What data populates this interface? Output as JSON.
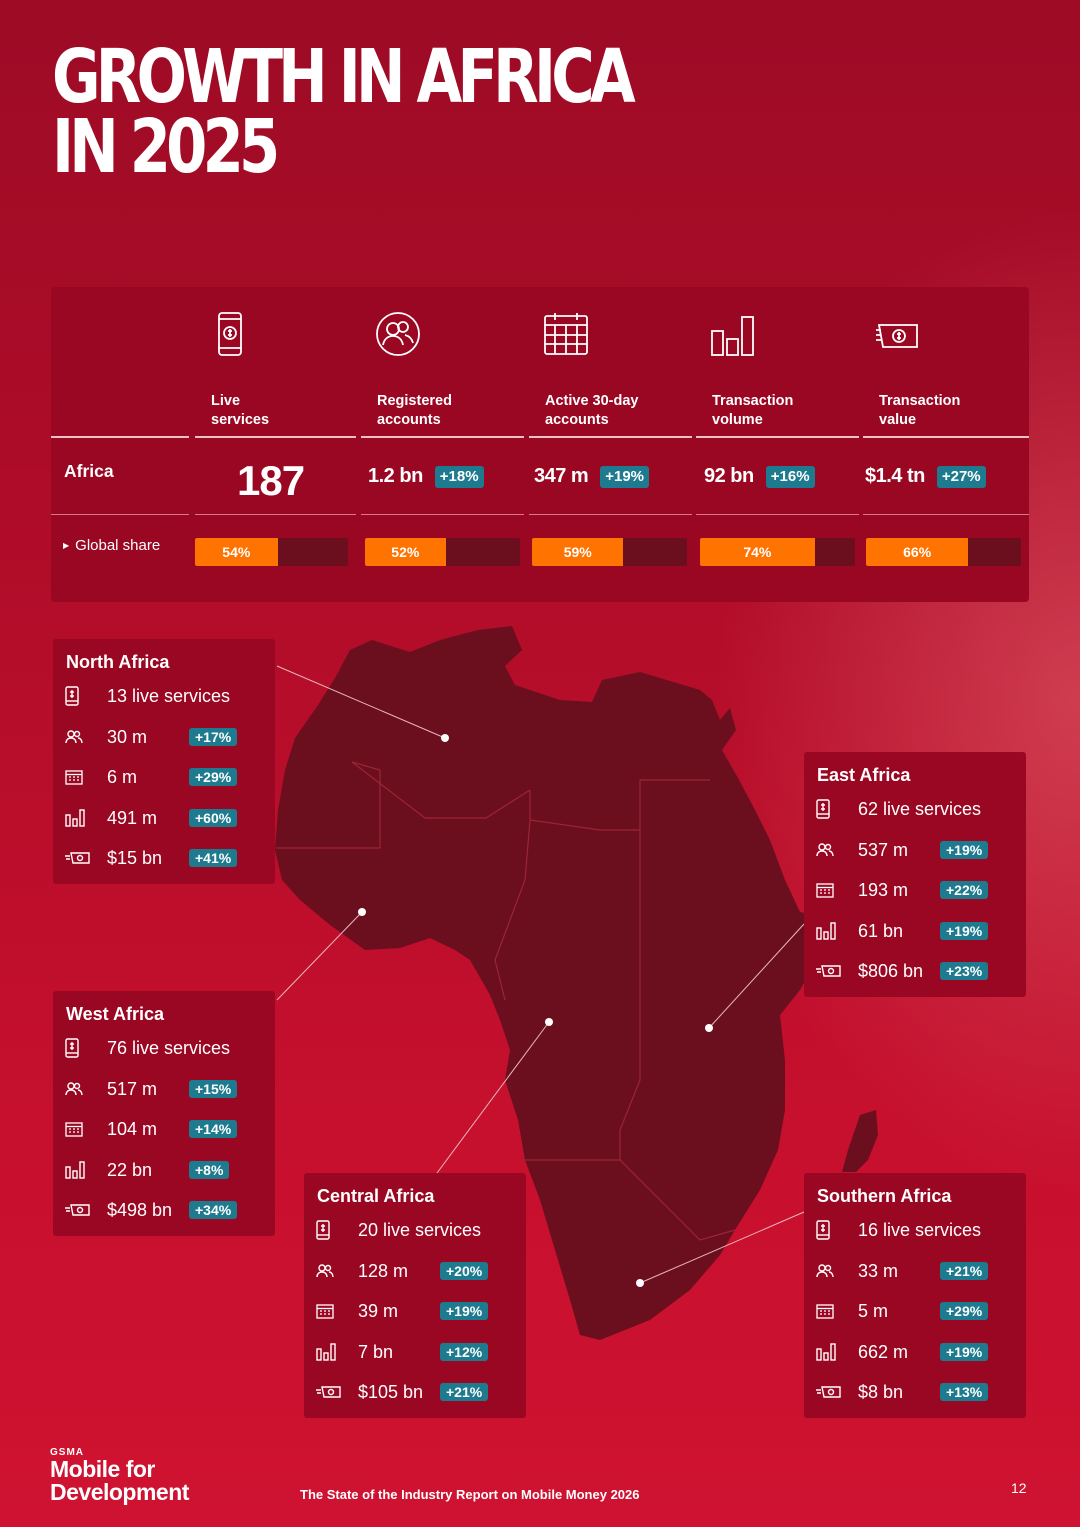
{
  "title": {
    "line1": "GROWTH IN AFRICA",
    "line2": "IN 2025"
  },
  "summary": {
    "region_label": "Africa",
    "share_label": "Global share",
    "columns": [
      {
        "icon": "phone-dollar-icon",
        "header": "Live\nservices",
        "value": "187",
        "growth": "",
        "share": "54%",
        "share_fraction": 0.54
      },
      {
        "icon": "users-icon",
        "header": "Registered\naccounts",
        "value": "1.2 bn",
        "growth": "+18%",
        "share": "52%",
        "share_fraction": 0.52
      },
      {
        "icon": "calendar-icon",
        "header": "Active 30-day\naccounts",
        "value": "347 m",
        "growth": "+19%",
        "share": "59%",
        "share_fraction": 0.59
      },
      {
        "icon": "bar-chart-icon",
        "header": "Transaction\nvolume",
        "value": "92 bn",
        "growth": "+16%",
        "share": "74%",
        "share_fraction": 0.74
      },
      {
        "icon": "banknote-icon",
        "header": "Transaction\nvalue",
        "value": "$1.4 tn",
        "growth": "+27%",
        "share": "66%",
        "share_fraction": 0.66
      }
    ]
  },
  "regions": [
    {
      "name": "North Africa",
      "rows": [
        {
          "icon": "phone-dollar-icon",
          "value": "13 live services",
          "growth": ""
        },
        {
          "icon": "users-icon",
          "value": "30 m",
          "growth": "+17%"
        },
        {
          "icon": "calendar-icon",
          "value": "6 m",
          "growth": "+29%"
        },
        {
          "icon": "bar-chart-icon",
          "value": "491 m",
          "growth": "+60%"
        },
        {
          "icon": "banknote-icon",
          "value": "$15 bn",
          "growth": "+41%"
        }
      ]
    },
    {
      "name": "West Africa",
      "rows": [
        {
          "icon": "phone-dollar-icon",
          "value": "76 live services",
          "growth": ""
        },
        {
          "icon": "users-icon",
          "value": "517 m",
          "growth": "+15%"
        },
        {
          "icon": "calendar-icon",
          "value": "104 m",
          "growth": "+14%"
        },
        {
          "icon": "bar-chart-icon",
          "value": "22 bn",
          "growth": "+8%"
        },
        {
          "icon": "banknote-icon",
          "value": "$498 bn",
          "growth": "+34%"
        }
      ]
    },
    {
      "name": "Central Africa",
      "rows": [
        {
          "icon": "phone-dollar-icon",
          "value": "20 live services",
          "growth": ""
        },
        {
          "icon": "users-icon",
          "value": "128 m",
          "growth": "+20%"
        },
        {
          "icon": "calendar-icon",
          "value": "39 m",
          "growth": "+19%"
        },
        {
          "icon": "bar-chart-icon",
          "value": "7 bn",
          "growth": "+12%"
        },
        {
          "icon": "banknote-icon",
          "value": "$105 bn",
          "growth": "+21%"
        }
      ]
    },
    {
      "name": "East Africa",
      "rows": [
        {
          "icon": "phone-dollar-icon",
          "value": "62 live services",
          "growth": ""
        },
        {
          "icon": "users-icon",
          "value": "537 m",
          "growth": "+19%"
        },
        {
          "icon": "calendar-icon",
          "value": "193 m",
          "growth": "+22%"
        },
        {
          "icon": "bar-chart-icon",
          "value": "61 bn",
          "growth": "+19%"
        },
        {
          "icon": "banknote-icon",
          "value": "$806 bn",
          "growth": "+23%"
        }
      ]
    },
    {
      "name": "Southern Africa",
      "rows": [
        {
          "icon": "phone-dollar-icon",
          "value": "16 live services",
          "growth": ""
        },
        {
          "icon": "users-icon",
          "value": "33 m",
          "growth": "+21%"
        },
        {
          "icon": "calendar-icon",
          "value": "5 m",
          "growth": "+29%"
        },
        {
          "icon": "bar-chart-icon",
          "value": "662 m",
          "growth": "+19%"
        },
        {
          "icon": "banknote-icon",
          "value": "$8 bn",
          "growth": "+13%"
        }
      ]
    }
  ],
  "footer": {
    "logo_small": "GSMA",
    "logo_line1": "Mobile for",
    "logo_line2": "Development",
    "report_title": "The State of the Industry Report on Mobile Money 2026",
    "page_number": "12"
  },
  "colors": {
    "background": "#b50d2a",
    "card": "#9a0722",
    "map": "#6b0f1e",
    "share_bar": "#ff7300",
    "growth_pill": "#1e7b8f"
  }
}
